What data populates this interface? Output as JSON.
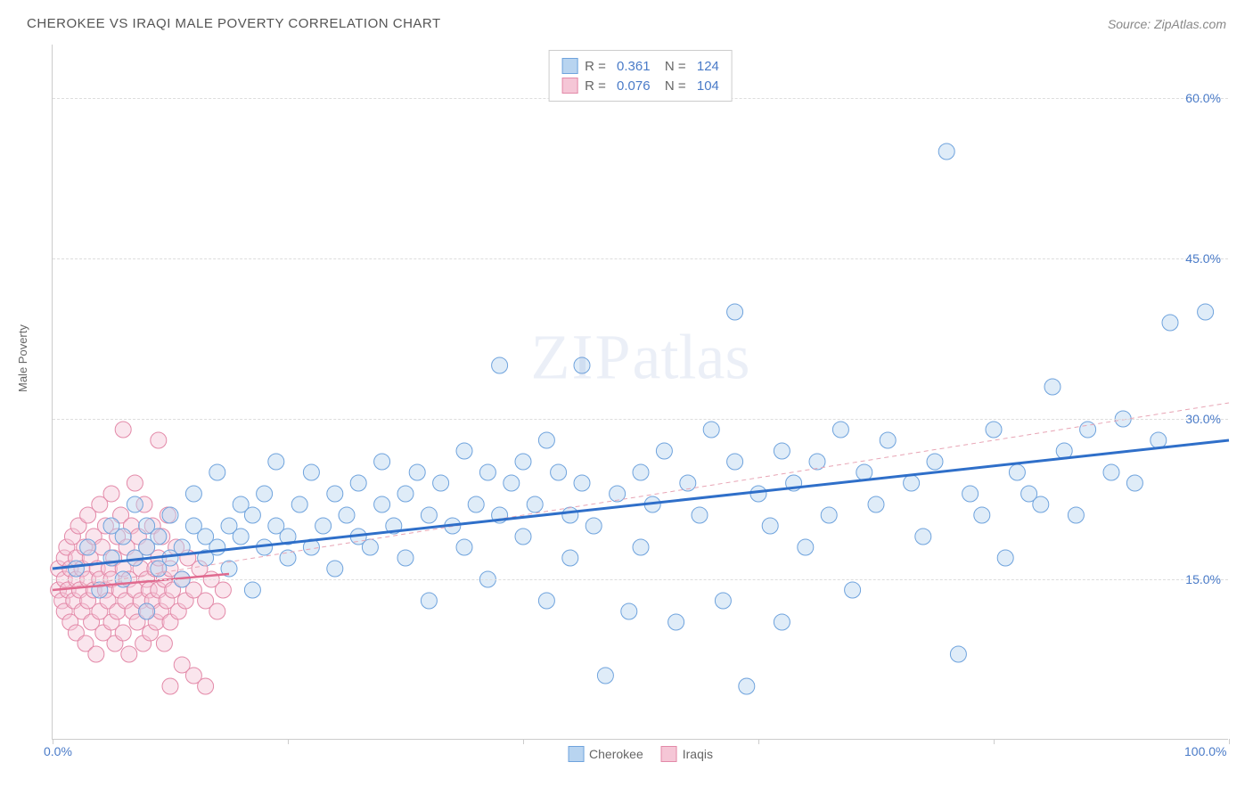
{
  "header": {
    "title": "CHEROKEE VS IRAQI MALE POVERTY CORRELATION CHART",
    "source": "Source: ZipAtlas.com"
  },
  "chart": {
    "type": "scatter",
    "ylabel": "Male Poverty",
    "xlim": [
      0,
      100
    ],
    "ylim": [
      0,
      65
    ],
    "xticks": [
      {
        "pos": 0,
        "label": "0.0%"
      },
      {
        "pos": 20,
        "label": ""
      },
      {
        "pos": 40,
        "label": ""
      },
      {
        "pos": 60,
        "label": ""
      },
      {
        "pos": 80,
        "label": ""
      },
      {
        "pos": 100,
        "label": "100.0%"
      }
    ],
    "yticks": [
      {
        "pos": 15,
        "label": "15.0%"
      },
      {
        "pos": 30,
        "label": "30.0%"
      },
      {
        "pos": 45,
        "label": "45.0%"
      },
      {
        "pos": 60,
        "label": "60.0%"
      }
    ],
    "grid_color": "#dddddd",
    "background": "#ffffff",
    "marker_radius": 9,
    "marker_opacity": 0.45,
    "series": [
      {
        "name": "Cherokee",
        "fill": "#b8d4f0",
        "stroke": "#6fa3dd",
        "R": "0.361",
        "N": "124",
        "trend": {
          "x1": 0,
          "y1": 16,
          "x2": 100,
          "y2": 28,
          "stroke": "#2f6fc9",
          "width": 3,
          "dash": "none"
        },
        "trend_dash": {
          "x1": 0,
          "y1": 14,
          "x2": 100,
          "y2": 31.5,
          "stroke": "#e8a5b5",
          "width": 1,
          "dash": "5,4"
        },
        "points": [
          [
            2,
            16
          ],
          [
            3,
            18
          ],
          [
            4,
            14
          ],
          [
            5,
            17
          ],
          [
            5,
            20
          ],
          [
            6,
            19
          ],
          [
            6,
            15
          ],
          [
            7,
            17
          ],
          [
            7,
            22
          ],
          [
            8,
            18
          ],
          [
            8,
            20
          ],
          [
            8,
            12
          ],
          [
            9,
            16
          ],
          [
            9,
            19
          ],
          [
            10,
            21
          ],
          [
            10,
            17
          ],
          [
            11,
            18
          ],
          [
            11,
            15
          ],
          [
            12,
            20
          ],
          [
            12,
            23
          ],
          [
            13,
            17
          ],
          [
            13,
            19
          ],
          [
            14,
            25
          ],
          [
            14,
            18
          ],
          [
            15,
            20
          ],
          [
            15,
            16
          ],
          [
            16,
            22
          ],
          [
            16,
            19
          ],
          [
            17,
            21
          ],
          [
            17,
            14
          ],
          [
            18,
            23
          ],
          [
            18,
            18
          ],
          [
            19,
            26
          ],
          [
            19,
            20
          ],
          [
            20,
            19
          ],
          [
            20,
            17
          ],
          [
            21,
            22
          ],
          [
            22,
            25
          ],
          [
            22,
            18
          ],
          [
            23,
            20
          ],
          [
            24,
            23
          ],
          [
            24,
            16
          ],
          [
            25,
            21
          ],
          [
            26,
            24
          ],
          [
            26,
            19
          ],
          [
            27,
            18
          ],
          [
            28,
            22
          ],
          [
            28,
            26
          ],
          [
            29,
            20
          ],
          [
            30,
            23
          ],
          [
            30,
            17
          ],
          [
            31,
            25
          ],
          [
            32,
            21
          ],
          [
            32,
            13
          ],
          [
            33,
            24
          ],
          [
            34,
            20
          ],
          [
            35,
            27
          ],
          [
            35,
            18
          ],
          [
            36,
            22
          ],
          [
            37,
            25
          ],
          [
            37,
            15
          ],
          [
            38,
            21
          ],
          [
            38,
            35
          ],
          [
            39,
            24
          ],
          [
            40,
            26
          ],
          [
            40,
            19
          ],
          [
            41,
            22
          ],
          [
            42,
            13
          ],
          [
            42,
            28
          ],
          [
            43,
            25
          ],
          [
            44,
            21
          ],
          [
            44,
            17
          ],
          [
            45,
            24
          ],
          [
            45,
            35
          ],
          [
            46,
            20
          ],
          [
            47,
            6
          ],
          [
            48,
            23
          ],
          [
            49,
            12
          ],
          [
            50,
            25
          ],
          [
            50,
            18
          ],
          [
            51,
            22
          ],
          [
            52,
            27
          ],
          [
            53,
            11
          ],
          [
            54,
            24
          ],
          [
            55,
            21
          ],
          [
            56,
            29
          ],
          [
            57,
            13
          ],
          [
            58,
            26
          ],
          [
            58,
            40
          ],
          [
            59,
            5
          ],
          [
            60,
            23
          ],
          [
            61,
            20
          ],
          [
            62,
            27
          ],
          [
            62,
            11
          ],
          [
            63,
            24
          ],
          [
            64,
            18
          ],
          [
            65,
            26
          ],
          [
            66,
            21
          ],
          [
            67,
            29
          ],
          [
            68,
            14
          ],
          [
            69,
            25
          ],
          [
            70,
            22
          ],
          [
            71,
            28
          ],
          [
            73,
            24
          ],
          [
            74,
            19
          ],
          [
            75,
            26
          ],
          [
            76,
            55
          ],
          [
            77,
            8
          ],
          [
            78,
            23
          ],
          [
            79,
            21
          ],
          [
            80,
            29
          ],
          [
            81,
            17
          ],
          [
            82,
            25
          ],
          [
            83,
            23
          ],
          [
            84,
            22
          ],
          [
            85,
            33
          ],
          [
            86,
            27
          ],
          [
            87,
            21
          ],
          [
            88,
            29
          ],
          [
            90,
            25
          ],
          [
            91,
            30
          ],
          [
            92,
            24
          ],
          [
            94,
            28
          ],
          [
            95,
            39
          ],
          [
            98,
            40
          ]
        ]
      },
      {
        "name": "Iraqis",
        "fill": "#f5c6d6",
        "stroke": "#e389a8",
        "R": "0.076",
        "N": "104",
        "trend": {
          "x1": 0,
          "y1": 14,
          "x2": 15,
          "y2": 15.5,
          "stroke": "#e06a8f",
          "width": 2.5,
          "dash": "none"
        },
        "points": [
          [
            0.5,
            14
          ],
          [
            0.5,
            16
          ],
          [
            0.8,
            13
          ],
          [
            1,
            15
          ],
          [
            1,
            17
          ],
          [
            1,
            12
          ],
          [
            1.2,
            18
          ],
          [
            1.3,
            14
          ],
          [
            1.5,
            16
          ],
          [
            1.5,
            11
          ],
          [
            1.7,
            19
          ],
          [
            1.8,
            13
          ],
          [
            2,
            15
          ],
          [
            2,
            17
          ],
          [
            2,
            10
          ],
          [
            2.2,
            20
          ],
          [
            2.3,
            14
          ],
          [
            2.5,
            16
          ],
          [
            2.5,
            12
          ],
          [
            2.7,
            18
          ],
          [
            2.8,
            9
          ],
          [
            3,
            15
          ],
          [
            3,
            21
          ],
          [
            3,
            13
          ],
          [
            3.2,
            17
          ],
          [
            3.3,
            11
          ],
          [
            3.5,
            19
          ],
          [
            3.5,
            14
          ],
          [
            3.7,
            8
          ],
          [
            3.8,
            16
          ],
          [
            4,
            22
          ],
          [
            4,
            12
          ],
          [
            4,
            15
          ],
          [
            4.2,
            18
          ],
          [
            4.3,
            10
          ],
          [
            4.5,
            14
          ],
          [
            4.5,
            20
          ],
          [
            4.7,
            13
          ],
          [
            4.8,
            16
          ],
          [
            5,
            11
          ],
          [
            5,
            23
          ],
          [
            5,
            15
          ],
          [
            5.2,
            17
          ],
          [
            5.3,
            9
          ],
          [
            5.5,
            19
          ],
          [
            5.5,
            12
          ],
          [
            5.7,
            14
          ],
          [
            5.8,
            21
          ],
          [
            6,
            16
          ],
          [
            6,
            10
          ],
          [
            6,
            29
          ],
          [
            6.2,
            13
          ],
          [
            6.3,
            18
          ],
          [
            6.5,
            15
          ],
          [
            6.5,
            8
          ],
          [
            6.7,
            20
          ],
          [
            6.8,
            12
          ],
          [
            7,
            14
          ],
          [
            7,
            24
          ],
          [
            7,
            17
          ],
          [
            7.2,
            11
          ],
          [
            7.3,
            19
          ],
          [
            7.5,
            13
          ],
          [
            7.5,
            16
          ],
          [
            7.7,
            9
          ],
          [
            7.8,
            22
          ],
          [
            8,
            15
          ],
          [
            8,
            12
          ],
          [
            8,
            18
          ],
          [
            8.2,
            14
          ],
          [
            8.3,
            10
          ],
          [
            8.5,
            20
          ],
          [
            8.5,
            13
          ],
          [
            8.7,
            16
          ],
          [
            8.8,
            11
          ],
          [
            9,
            28
          ],
          [
            9,
            14
          ],
          [
            9,
            17
          ],
          [
            9.2,
            12
          ],
          [
            9.3,
            19
          ],
          [
            9.5,
            15
          ],
          [
            9.5,
            9
          ],
          [
            9.7,
            13
          ],
          [
            9.8,
            21
          ],
          [
            10,
            16
          ],
          [
            10,
            11
          ],
          [
            10,
            5
          ],
          [
            10.2,
            14
          ],
          [
            10.5,
            18
          ],
          [
            10.7,
            12
          ],
          [
            11,
            15
          ],
          [
            11,
            7
          ],
          [
            11.3,
            13
          ],
          [
            11.5,
            17
          ],
          [
            12,
            14
          ],
          [
            12,
            6
          ],
          [
            12.5,
            16
          ],
          [
            13,
            13
          ],
          [
            13,
            5
          ],
          [
            13.5,
            15
          ],
          [
            14,
            12
          ],
          [
            14.5,
            14
          ]
        ]
      }
    ],
    "legend_bottom": [
      {
        "label": "Cherokee",
        "fill": "#b8d4f0",
        "stroke": "#6fa3dd"
      },
      {
        "label": "Iraqis",
        "fill": "#f5c6d6",
        "stroke": "#e389a8"
      }
    ],
    "watermark": "ZIPatlas"
  }
}
